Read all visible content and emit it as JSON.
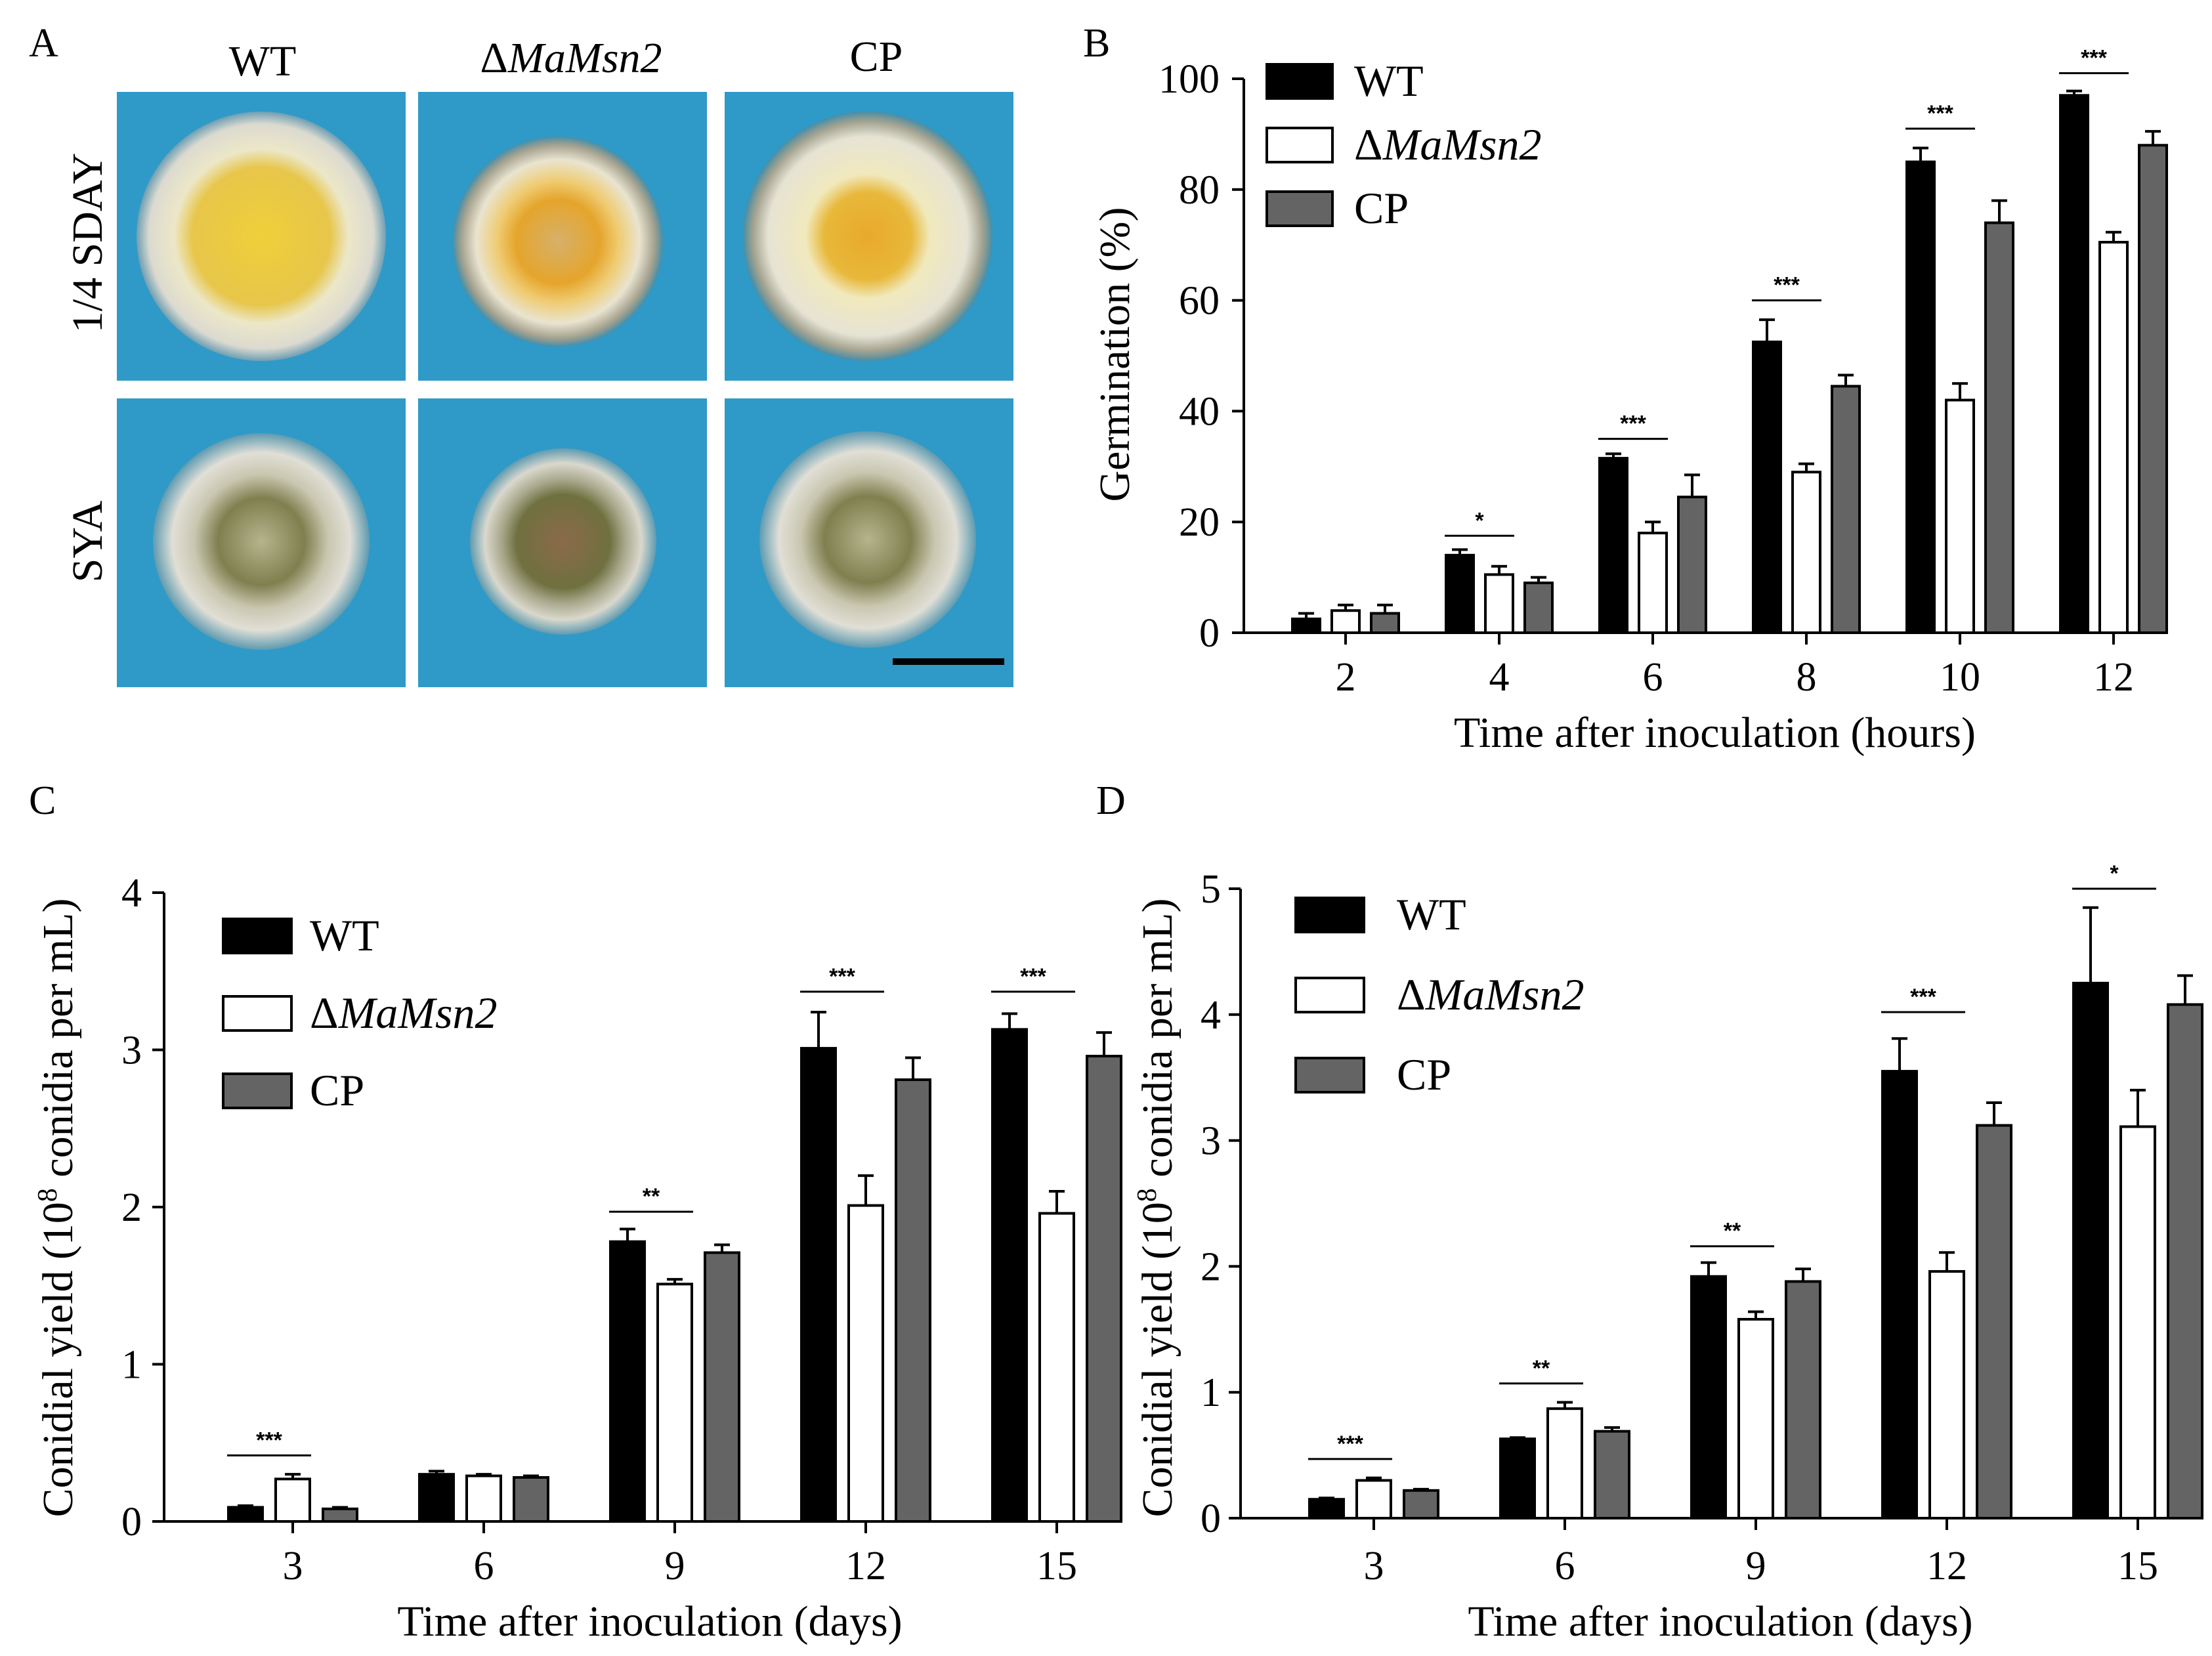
{
  "panel_a": {
    "label": "A",
    "columns": [
      "WT",
      "Δ",
      "MaMsn2",
      "CP"
    ],
    "rows": [
      "1/4 SDAY",
      "SYA"
    ],
    "colors": {
      "plate_bg": "#2f9ac8",
      "mycelium_edge": "#dedbcf",
      "sday_wt_center": "#e8c43a",
      "sday_mut_center": "#e2a62c",
      "sday_cp_center": "#e9b32c",
      "sya_center": "#8b8a55"
    }
  },
  "chart_data": [
    {
      "panel": "B",
      "type": "bar",
      "title": "",
      "xlabel": "Time after inoculation (hours)",
      "ylabel": "Germination (%)",
      "ylim": [
        0,
        100
      ],
      "yticks": [
        0,
        20,
        40,
        60,
        80,
        100
      ],
      "categories": [
        "2",
        "4",
        "6",
        "8",
        "10",
        "12"
      ],
      "legend_position": "top-left",
      "series": [
        {
          "name": "WT",
          "name_prefix": "",
          "values": [
            2.5,
            14,
            31.5,
            52.5,
            85,
            97
          ],
          "errors": [
            1.0,
            1.0,
            0.8,
            4.0,
            2.5,
            0.8
          ],
          "fill": "#000000"
        },
        {
          "name": "MaMsn2",
          "name_prefix": "Δ",
          "values": [
            4,
            10.5,
            18,
            29,
            42,
            70.5
          ],
          "errors": [
            1.0,
            1.5,
            2.0,
            1.5,
            3.0,
            1.8
          ],
          "fill": "#ffffff"
        },
        {
          "name": "CP",
          "name_prefix": "",
          "values": [
            3.5,
            9,
            24.5,
            44.5,
            74,
            88
          ],
          "errors": [
            1.5,
            1.0,
            4.0,
            2.0,
            4.0,
            2.5
          ],
          "fill": "#646464"
        }
      ],
      "significance": [
        {
          "category": "4",
          "label": "*",
          "y": 17.5
        },
        {
          "category": "6",
          "label": "***",
          "y": 35
        },
        {
          "category": "8",
          "label": "***",
          "y": 60
        },
        {
          "category": "10",
          "label": "***",
          "y": 91
        },
        {
          "category": "12",
          "label": "***",
          "y": 101
        }
      ]
    },
    {
      "panel": "C",
      "type": "bar",
      "title": "",
      "xlabel": "Time after inoculation (days)",
      "ylabel_prefix": "Conidial yield (10",
      "ylabel_sup": "8",
      "ylabel_suffix": " conidia per mL)",
      "ylim": [
        0,
        4
      ],
      "yticks": [
        0,
        1,
        2,
        3,
        4
      ],
      "categories": [
        "3",
        "6",
        "9",
        "12",
        "15"
      ],
      "legend_position": "top-left",
      "series": [
        {
          "name": "WT",
          "name_prefix": "",
          "values": [
            0.09,
            0.3,
            1.78,
            3.01,
            3.13
          ],
          "errors": [
            0.01,
            0.02,
            0.08,
            0.23,
            0.1
          ],
          "fill": "#000000"
        },
        {
          "name": "MaMsn2",
          "name_prefix": "Δ",
          "values": [
            0.27,
            0.29,
            1.51,
            2.01,
            1.96
          ],
          "errors": [
            0.03,
            0.01,
            0.03,
            0.19,
            0.14
          ],
          "fill": "#ffffff"
        },
        {
          "name": "CP",
          "name_prefix": "",
          "values": [
            0.08,
            0.28,
            1.71,
            2.81,
            2.96
          ],
          "errors": [
            0.01,
            0.01,
            0.05,
            0.14,
            0.15
          ],
          "fill": "#646464"
        }
      ],
      "significance": [
        {
          "category": "3",
          "label": "***",
          "y": 0.42
        },
        {
          "category": "9",
          "label": "**",
          "y": 1.97
        },
        {
          "category": "12",
          "label": "***",
          "y": 3.37
        },
        {
          "category": "15",
          "label": "***",
          "y": 3.37
        }
      ]
    },
    {
      "panel": "D",
      "type": "bar",
      "title": "",
      "xlabel": "Time after inoculation (days)",
      "ylabel_prefix": "Conidial yield (10",
      "ylabel_sup": "8",
      "ylabel_suffix": " conidia per mL)",
      "ylim": [
        0,
        5
      ],
      "yticks": [
        0,
        1,
        2,
        3,
        4,
        5
      ],
      "categories": [
        "3",
        "6",
        "9",
        "12",
        "15"
      ],
      "legend_position": "top-left",
      "series": [
        {
          "name": "WT",
          "name_prefix": "",
          "values": [
            0.15,
            0.63,
            1.92,
            3.55,
            4.25
          ],
          "errors": [
            0.01,
            0.01,
            0.11,
            0.26,
            0.6
          ],
          "fill": "#000000"
        },
        {
          "name": "MaMsn2",
          "name_prefix": "Δ",
          "values": [
            0.3,
            0.87,
            1.58,
            1.96,
            3.11
          ],
          "errors": [
            0.02,
            0.05,
            0.06,
            0.15,
            0.29
          ],
          "fill": "#ffffff"
        },
        {
          "name": "CP",
          "name_prefix": "",
          "values": [
            0.22,
            0.69,
            1.88,
            3.12,
            4.08
          ],
          "errors": [
            0.01,
            0.03,
            0.1,
            0.18,
            0.23
          ],
          "fill": "#646464"
        }
      ],
      "significance": [
        {
          "category": "3",
          "label": "***",
          "y": 0.47
        },
        {
          "category": "6",
          "label": "**",
          "y": 1.07
        },
        {
          "category": "9",
          "label": "**",
          "y": 2.16
        },
        {
          "category": "12",
          "label": "***",
          "y": 4.02
        },
        {
          "category": "15",
          "label": "*",
          "y": 5.0
        }
      ]
    }
  ]
}
